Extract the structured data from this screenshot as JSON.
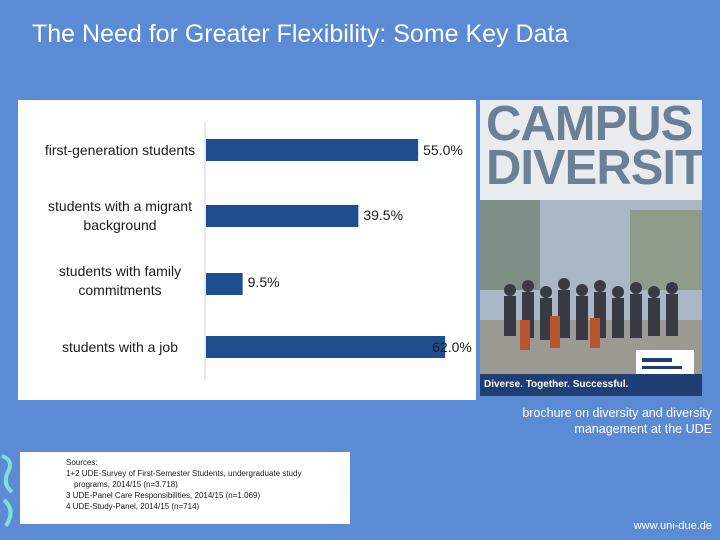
{
  "slide": {
    "title": "The Need for Greater Flexibility: Some Key Data",
    "footer_url": "www.uni-due.de"
  },
  "chart_data": {
    "type": "bar",
    "orientation": "horizontal",
    "categories": [
      "first-generation students",
      "students with a migrant background",
      "students with family commitments",
      "students with a job"
    ],
    "values": [
      55.0,
      39.5,
      9.5,
      62.0
    ],
    "value_labels": [
      "55.0%",
      "39.5%",
      "9.5%",
      "62.0%"
    ],
    "xlim": [
      0,
      70
    ],
    "title": "",
    "xlabel": "",
    "ylabel": "",
    "bar_color": "#1f4e8f"
  },
  "brochure": {
    "title_line1": "CAMPUS",
    "title_line2": "DIVERSITY",
    "tagline": "Diverse. Together. Successful.",
    "caption": "brochure on diversity and diversity management at the UDE"
  },
  "sources": {
    "heading": "Sources:",
    "lines": [
      "1+2 UDE-Survey of First-Semester Students, undergraduate study",
      "programs, 2014/15 (n=3.718)",
      "3 UDE-Panel Care Responsibilities, 2014/15 (n=1.069)",
      "4 UDE-Study-Panel, 2014/15 (n=714)"
    ]
  }
}
